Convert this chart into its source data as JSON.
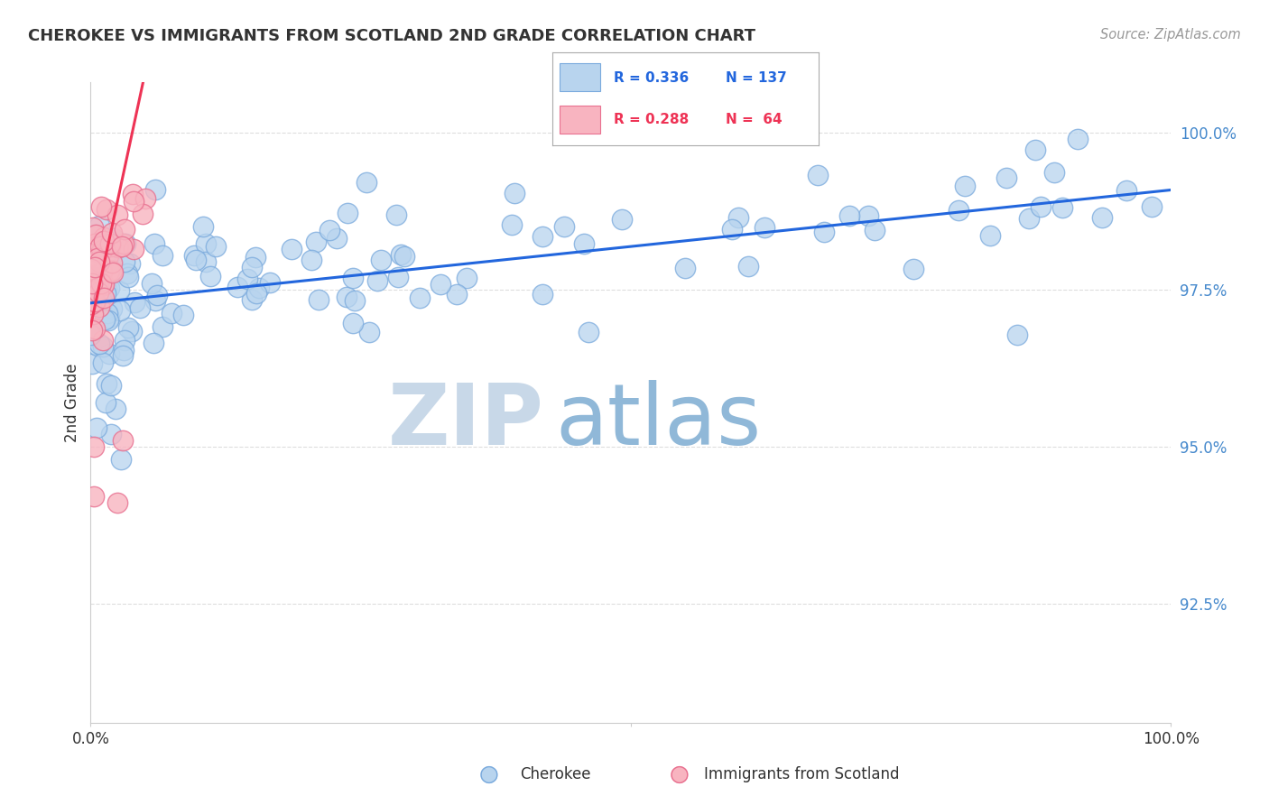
{
  "title": "CHEROKEE VS IMMIGRANTS FROM SCOTLAND 2ND GRADE CORRELATION CHART",
  "source": "Source: ZipAtlas.com",
  "ylabel": "2nd Grade",
  "ytick_labels": [
    "92.5%",
    "95.0%",
    "97.5%",
    "100.0%"
  ],
  "ytick_values": [
    0.925,
    0.95,
    0.975,
    1.0
  ],
  "xmin": 0.0,
  "xmax": 1.0,
  "ymin": 0.906,
  "ymax": 1.008,
  "legend_blue_r": "R = 0.336",
  "legend_blue_n": "N = 137",
  "legend_pink_r": "R = 0.288",
  "legend_pink_n": "N =  64",
  "blue_color": "#B8D4EE",
  "blue_edge": "#7AAADD",
  "pink_color": "#F8B4C0",
  "pink_edge": "#E87090",
  "trend_blue": "#2266DD",
  "trend_pink": "#EE3355",
  "ytick_color": "#4488CC",
  "watermark_zip_color": "#C8D8E8",
  "watermark_atlas_color": "#90B8D8",
  "background_color": "#FFFFFF",
  "grid_color": "#DDDDDD",
  "title_color": "#333333",
  "source_color": "#999999"
}
